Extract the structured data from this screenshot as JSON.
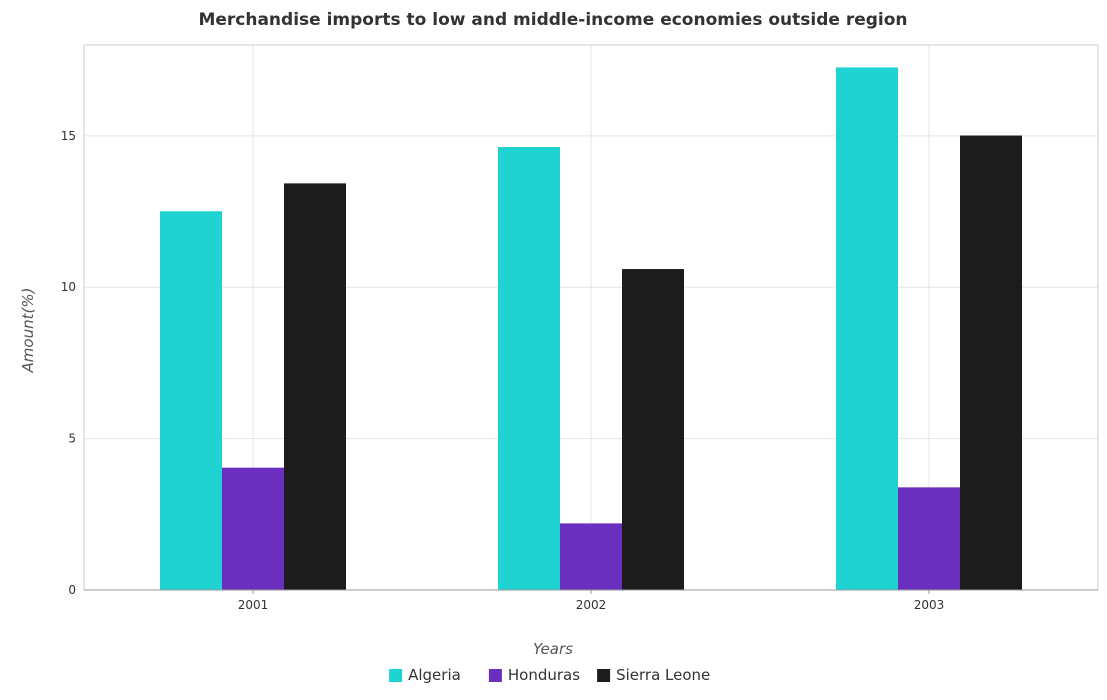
{
  "chart_data": {
    "type": "bar",
    "title": "Merchandise imports to low and middle-income economies outside region",
    "xlabel": "Years",
    "ylabel": "Amount(%)",
    "categories": [
      "2001",
      "2002",
      "2003"
    ],
    "series": [
      {
        "name": "Algeria",
        "color": "#1fd3d3",
        "values": [
          12.51,
          14.63,
          17.26
        ]
      },
      {
        "name": "Honduras",
        "color": "#6a2fbf",
        "values": [
          4.04,
          2.2,
          3.39
        ]
      },
      {
        "name": "Sierra Leone",
        "color": "#1c1c1c",
        "values": [
          13.43,
          10.6,
          15.01
        ]
      }
    ],
    "ylim": [
      0,
      18
    ],
    "yticks": [
      0,
      5,
      10,
      15
    ],
    "ytick_labels": [
      "0",
      "5",
      "10",
      "15"
    ],
    "grid": true,
    "legend_position": "bottom-center"
  }
}
